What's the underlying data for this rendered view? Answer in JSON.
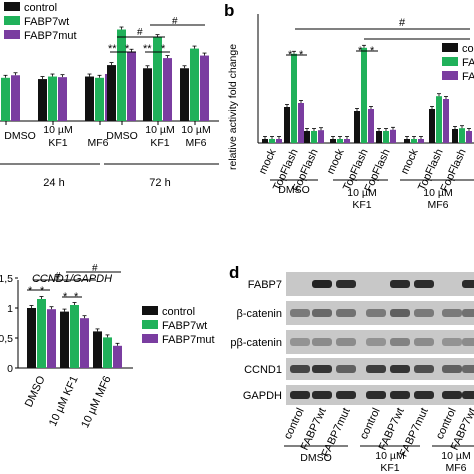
{
  "panel_letters": {
    "b": "b",
    "d": "d"
  },
  "colors": {
    "control": "#111111",
    "fabp7wt": "#20b15a",
    "fabp7mut": "#7a3da0",
    "band": "#1a1a1a",
    "blot_bg": "#c8c8c8"
  },
  "chart_data": [
    {
      "panel": "a",
      "type": "bar",
      "legend": [
        "control",
        "FABP7wt",
        "FABP7mut"
      ],
      "legend_position": "top-left",
      "groups": [
        "DMSO",
        "10 µM KF1",
        "10 µM MF6",
        "DMSO",
        "10 µM KF1",
        "10 µM MF6"
      ],
      "group_labels": [
        [
          "DMSO"
        ],
        [
          "10 µM",
          "KF1"
        ],
        [
          "MF6"
        ],
        [
          "DMSO"
        ],
        [
          "10 µM",
          "KF1"
        ],
        [
          "10 µM",
          "MF6"
        ]
      ],
      "time_labels": [
        "24 h",
        "72 h"
      ],
      "series": [
        {
          "name": "control",
          "values": [
            1.0,
            0.96,
            1.0,
            1.18,
            1.13,
            1.13
          ]
        },
        {
          "name": "FABP7wt",
          "values": [
            0.98,
            1.0,
            0.98,
            1.74,
            1.62,
            1.44
          ]
        },
        {
          "name": "FABP7mut",
          "values": [
            1.02,
            0.99,
            1.04,
            1.39,
            1.29,
            1.33
          ]
        }
      ],
      "ylim": [
        0.3,
        2.0
      ],
      "significance": [
        "*",
        "*",
        "*",
        "*",
        "*",
        "*",
        "#",
        "#"
      ]
    },
    {
      "panel": "b",
      "type": "bar",
      "ylabel": "relative activity fold change",
      "legend": [
        "control",
        "FAB",
        "FAB"
      ],
      "legend_position": "top-right",
      "categories": [
        "mock",
        "TopFlash",
        "FopFlash",
        "mock",
        "TopFlash",
        "FopFlash",
        "mock",
        "TopFlash",
        "FopFlash"
      ],
      "group_labels": [
        [
          "DMSO"
        ],
        [
          "10 µM",
          "KF1"
        ],
        [
          "10 µM",
          "MF6"
        ]
      ],
      "series": [
        {
          "name": "control",
          "values": [
            1,
            9,
            3,
            1,
            8,
            3,
            1,
            8.5,
            3.5
          ]
        },
        {
          "name": "FABP7wt",
          "values": [
            1,
            22.3,
            3,
            1,
            23.8,
            3,
            1,
            11.7,
            3.7
          ]
        },
        {
          "name": "FABP7mut",
          "values": [
            1,
            10,
            3.2,
            1,
            8.5,
            3.3,
            1,
            11,
            3.0
          ]
        }
      ],
      "ylim": [
        0,
        27
      ],
      "significance": [
        "*",
        "*",
        "*",
        "*",
        "#"
      ]
    },
    {
      "panel": "c",
      "type": "bar",
      "title": "CCND1/GAPDH",
      "legend": [
        "control",
        "FABP7wt",
        "FABP7mut"
      ],
      "legend_position": "right",
      "categories": [
        "DMSO",
        "10 µM KF1",
        "10 µM MF6"
      ],
      "series": [
        {
          "name": "control",
          "values": [
            1.0,
            0.94,
            0.61
          ]
        },
        {
          "name": "FABP7wt",
          "values": [
            1.15,
            1.05,
            0.51
          ]
        },
        {
          "name": "FABP7mut",
          "values": [
            0.98,
            0.83,
            0.37
          ]
        }
      ],
      "ylim": [
        0,
        1.5
      ],
      "yticks": [
        "0",
        "0,5",
        "1",
        "1,5"
      ],
      "significance": [
        "*",
        "*",
        "*",
        "*",
        "#",
        "#"
      ]
    }
  ],
  "blot": {
    "rows": [
      "FABP7",
      "β-catenin",
      "pβ-catenin",
      "CCND1",
      "GAPDH"
    ],
    "lanes": [
      "control",
      "FABP7wt",
      "FABP7mut",
      "control",
      "FABP7wt",
      "FABP7mut",
      "control",
      "FABP7wt"
    ],
    "groups": [
      [
        "DMSO"
      ],
      [
        "10 µM",
        "KF1"
      ],
      [
        "10 µM",
        "MF6"
      ]
    ],
    "intensity": [
      [
        0.0,
        0.95,
        0.9,
        0.0,
        0.9,
        0.9,
        0.0,
        0.9
      ],
      [
        0.45,
        0.55,
        0.5,
        0.45,
        0.6,
        0.45,
        0.45,
        0.5
      ],
      [
        0.3,
        0.35,
        0.35,
        0.3,
        0.4,
        0.35,
        0.3,
        0.35
      ],
      [
        0.75,
        0.85,
        0.6,
        0.8,
        0.85,
        0.7,
        0.6,
        0.55
      ],
      [
        0.9,
        0.9,
        0.9,
        0.9,
        0.9,
        0.9,
        0.9,
        0.9
      ]
    ]
  }
}
